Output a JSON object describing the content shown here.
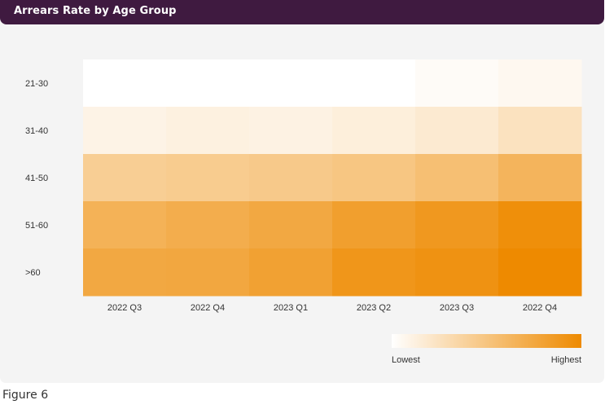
{
  "header": {
    "title": "Arrears Rate by Age Group"
  },
  "caption": "Figure 6",
  "colors": {
    "header": "#3f1a40",
    "low": "#ffffff",
    "high": "#ee8a00"
  },
  "chart_data": {
    "type": "heatmap",
    "title": "Arrears Rate by Age Group",
    "x_categories": [
      "2022 Q3",
      "2022 Q4",
      "2023 Q1",
      "2023 Q2",
      "2023 Q3",
      "2022 Q4"
    ],
    "y_categories": [
      "21-30",
      "31-40",
      "41-50",
      "51-60",
      ">60"
    ],
    "values": [
      [
        0.0,
        0.0,
        0.0,
        0.0,
        0.03,
        0.06
      ],
      [
        0.1,
        0.12,
        0.11,
        0.14,
        0.18,
        0.25
      ],
      [
        0.42,
        0.44,
        0.46,
        0.49,
        0.55,
        0.64
      ],
      [
        0.66,
        0.7,
        0.74,
        0.82,
        0.88,
        0.96
      ],
      [
        0.74,
        0.75,
        0.8,
        0.9,
        0.93,
        1.0
      ]
    ],
    "colorbar": {
      "low_label": "Lowest",
      "high_label": "Highest"
    }
  }
}
